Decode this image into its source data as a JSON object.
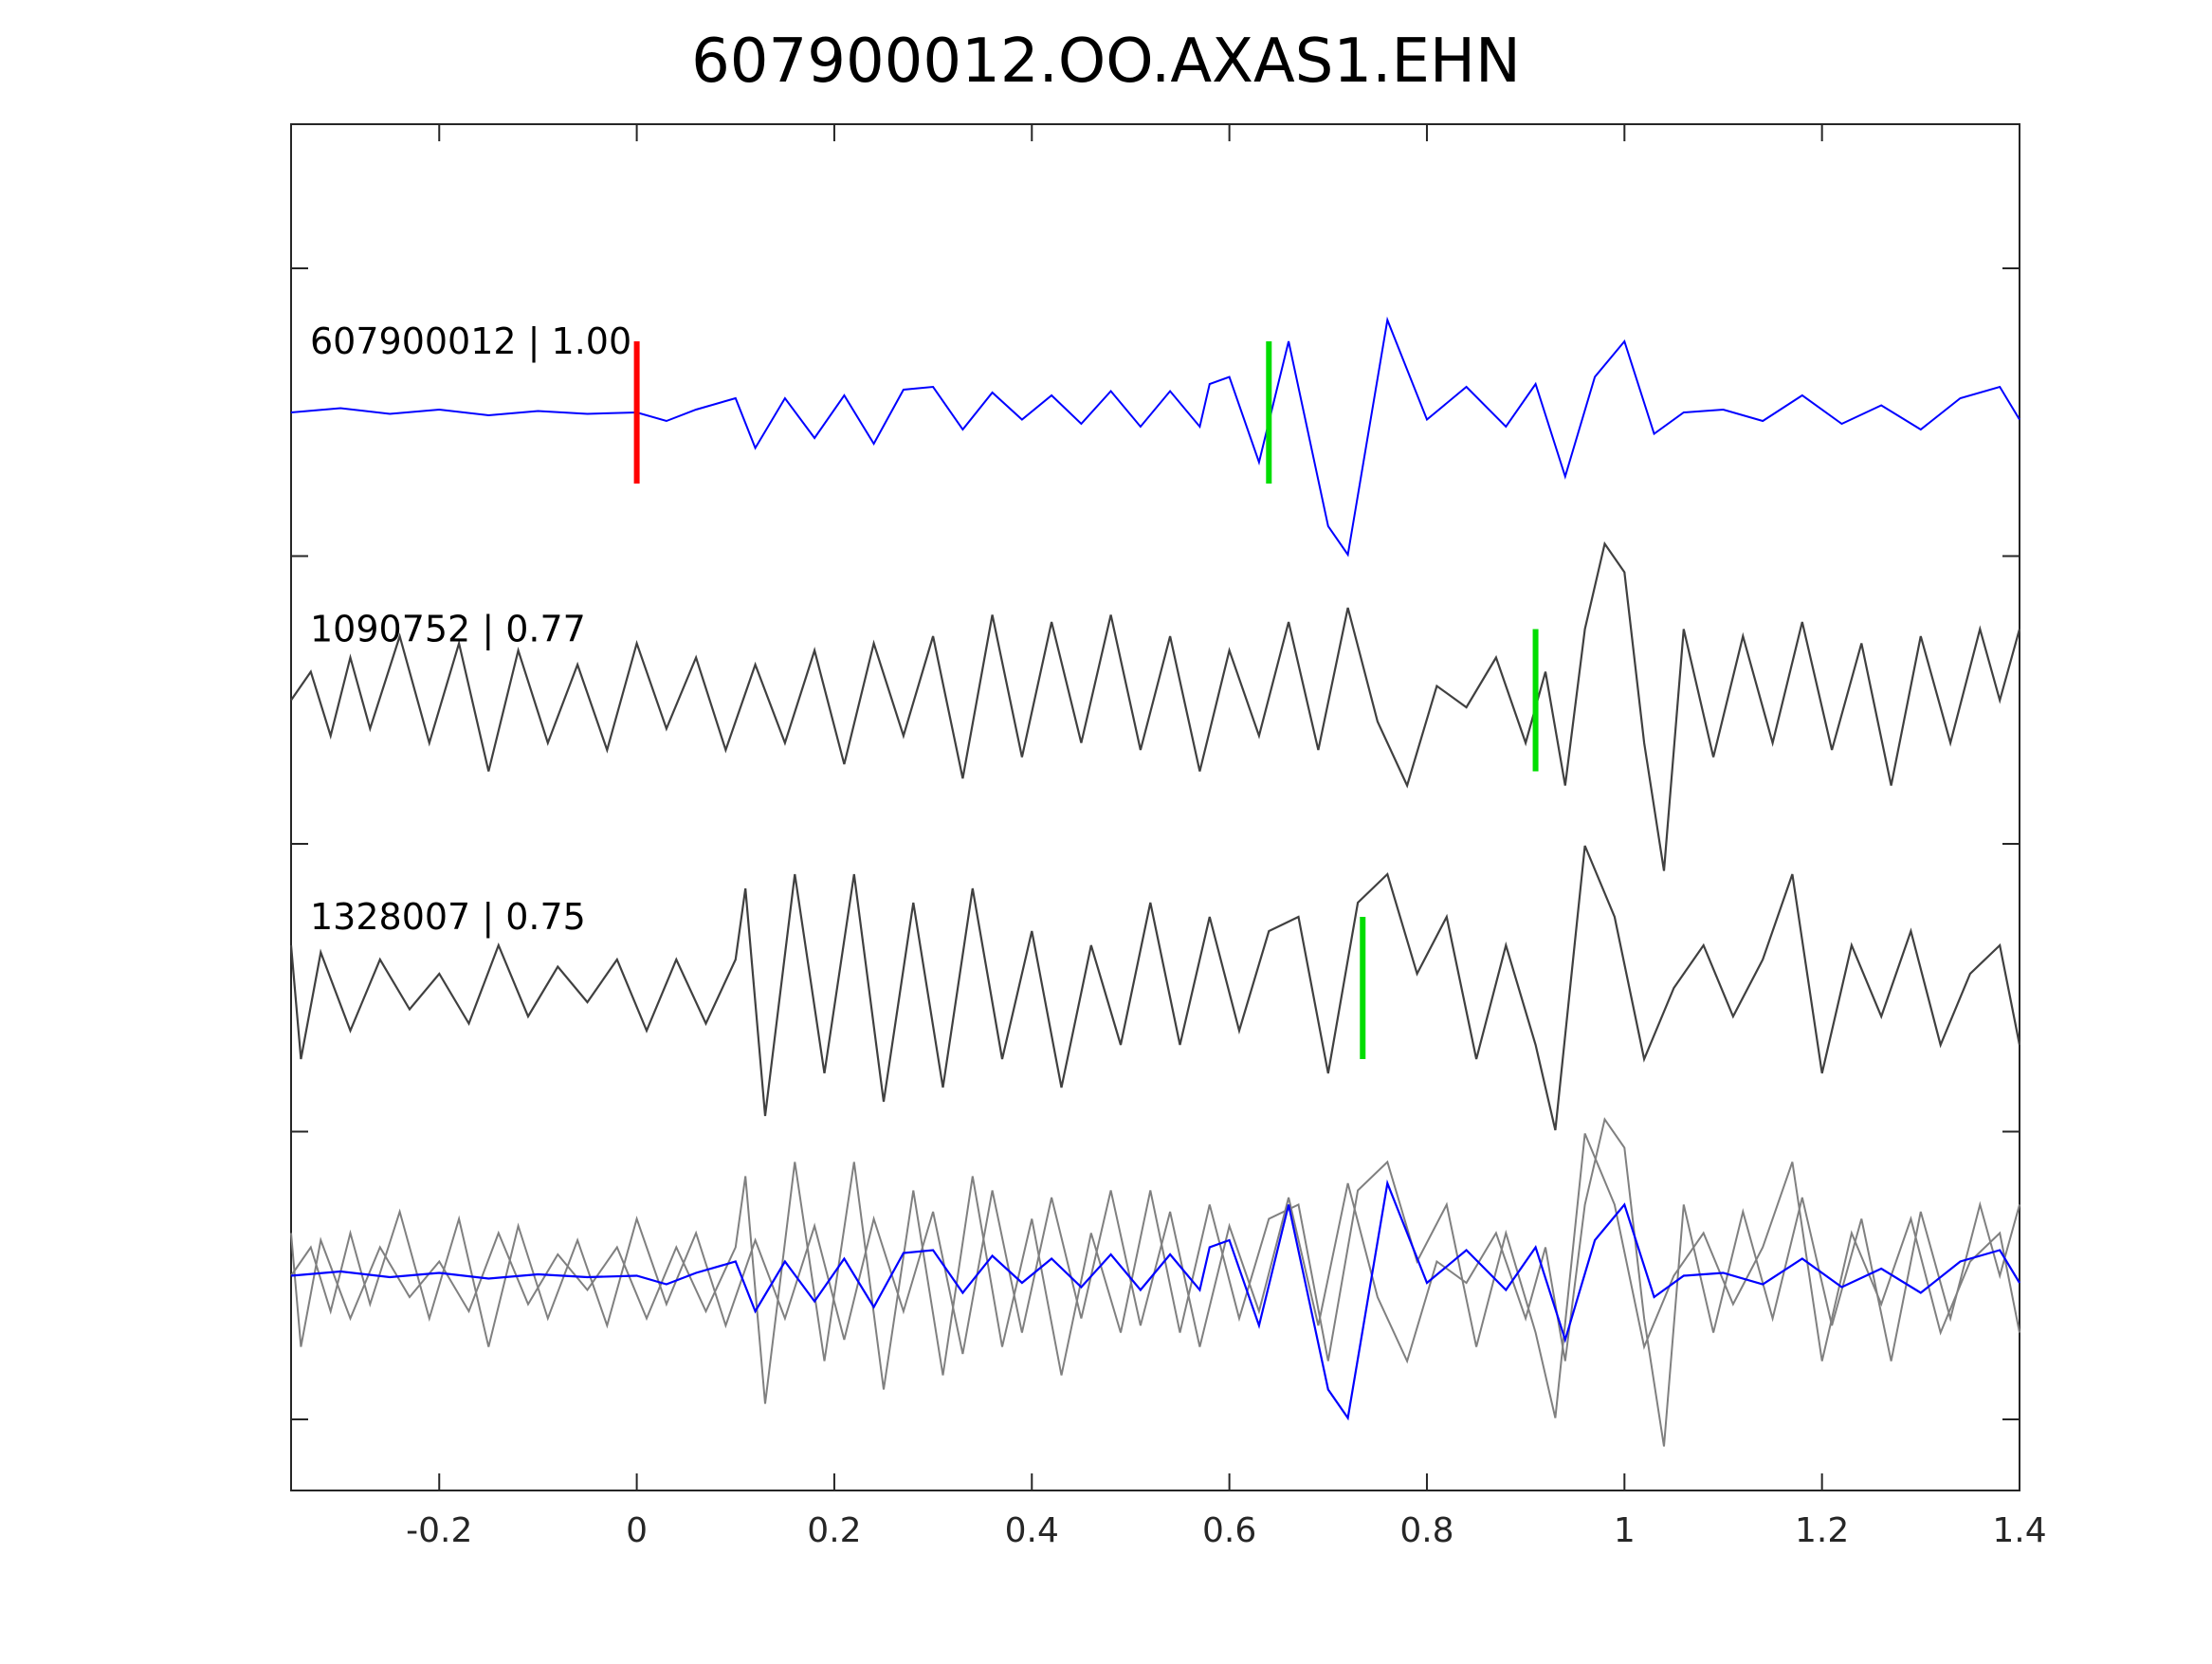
{
  "chart_data": {
    "type": "line",
    "title": "607900012.OO.AXAS1.EHN",
    "xlabel": "",
    "ylabel": "",
    "xlim": [
      -0.35,
      1.4
    ],
    "x_ticks": [
      -0.2,
      0,
      0.2,
      0.4,
      0.6,
      0.8,
      1,
      1.2,
      1.4
    ],
    "x_tick_labels": [
      "-0.2",
      "0",
      "0.2",
      "0.4",
      "0.6",
      "0.8",
      "1",
      "1.2",
      "1.4"
    ],
    "grid": false,
    "legend": "none",
    "colors": {
      "template": "#0000ff",
      "candidate": "#404040",
      "overlay": "#808080",
      "origin_pick": "#ff0000",
      "pick": "#00dd00",
      "axis": "#262626"
    },
    "traces": [
      {
        "label": "607900012 | 1.00",
        "id": "607900012",
        "correlation": "1.00",
        "style": "template",
        "picks": [
          {
            "t": 0.0,
            "kind": "origin"
          },
          {
            "t": 0.64,
            "kind": "arrival"
          }
        ],
        "points": [
          [
            -0.35,
            0.0
          ],
          [
            -0.3,
            0.03
          ],
          [
            -0.25,
            -0.01
          ],
          [
            -0.2,
            0.02
          ],
          [
            -0.15,
            -0.02
          ],
          [
            -0.1,
            0.01
          ],
          [
            -0.05,
            -0.01
          ],
          [
            0.0,
            0.0
          ],
          [
            0.03,
            -0.06
          ],
          [
            0.06,
            0.02
          ],
          [
            0.1,
            0.1
          ],
          [
            0.12,
            -0.25
          ],
          [
            0.15,
            0.1
          ],
          [
            0.18,
            -0.18
          ],
          [
            0.21,
            0.12
          ],
          [
            0.24,
            -0.22
          ],
          [
            0.27,
            0.16
          ],
          [
            0.3,
            0.18
          ],
          [
            0.33,
            -0.12
          ],
          [
            0.36,
            0.14
          ],
          [
            0.39,
            -0.05
          ],
          [
            0.42,
            0.12
          ],
          [
            0.45,
            -0.08
          ],
          [
            0.48,
            0.15
          ],
          [
            0.51,
            -0.1
          ],
          [
            0.54,
            0.15
          ],
          [
            0.57,
            -0.1
          ],
          [
            0.58,
            0.2
          ],
          [
            0.6,
            0.25
          ],
          [
            0.63,
            -0.35
          ],
          [
            0.66,
            0.5
          ],
          [
            0.7,
            -0.8
          ],
          [
            0.72,
            -1.0
          ],
          [
            0.76,
            0.65
          ],
          [
            0.8,
            -0.05
          ],
          [
            0.84,
            0.18
          ],
          [
            0.88,
            -0.1
          ],
          [
            0.91,
            0.2
          ],
          [
            0.94,
            -0.45
          ],
          [
            0.97,
            0.25
          ],
          [
            1.0,
            0.5
          ],
          [
            1.03,
            -0.15
          ],
          [
            1.06,
            0.0
          ],
          [
            1.1,
            0.02
          ],
          [
            1.14,
            -0.06
          ],
          [
            1.18,
            0.12
          ],
          [
            1.22,
            -0.08
          ],
          [
            1.26,
            0.05
          ],
          [
            1.3,
            -0.12
          ],
          [
            1.34,
            0.1
          ],
          [
            1.38,
            0.18
          ],
          [
            1.4,
            -0.05
          ]
        ]
      },
      {
        "label": "1090752 | 0.77",
        "id": "1090752",
        "correlation": "0.77",
        "style": "candidate",
        "picks": [
          {
            "t": 0.91,
            "kind": "arrival"
          }
        ],
        "points": [
          [
            -0.35,
            0.0
          ],
          [
            -0.33,
            0.2
          ],
          [
            -0.31,
            -0.25
          ],
          [
            -0.29,
            0.3
          ],
          [
            -0.27,
            -0.2
          ],
          [
            -0.24,
            0.45
          ],
          [
            -0.21,
            -0.3
          ],
          [
            -0.18,
            0.4
          ],
          [
            -0.15,
            -0.5
          ],
          [
            -0.12,
            0.35
          ],
          [
            -0.09,
            -0.3
          ],
          [
            -0.06,
            0.25
          ],
          [
            -0.03,
            -0.35
          ],
          [
            0.0,
            0.4
          ],
          [
            0.03,
            -0.2
          ],
          [
            0.06,
            0.3
          ],
          [
            0.09,
            -0.35
          ],
          [
            0.12,
            0.25
          ],
          [
            0.15,
            -0.3
          ],
          [
            0.18,
            0.35
          ],
          [
            0.21,
            -0.45
          ],
          [
            0.24,
            0.4
          ],
          [
            0.27,
            -0.25
          ],
          [
            0.3,
            0.45
          ],
          [
            0.33,
            -0.55
          ],
          [
            0.36,
            0.6
          ],
          [
            0.39,
            -0.4
          ],
          [
            0.42,
            0.55
          ],
          [
            0.45,
            -0.3
          ],
          [
            0.48,
            0.6
          ],
          [
            0.51,
            -0.35
          ],
          [
            0.54,
            0.45
          ],
          [
            0.57,
            -0.5
          ],
          [
            0.6,
            0.35
          ],
          [
            0.63,
            -0.25
          ],
          [
            0.66,
            0.55
          ],
          [
            0.69,
            -0.35
          ],
          [
            0.72,
            0.65
          ],
          [
            0.75,
            -0.15
          ],
          [
            0.78,
            -0.6
          ],
          [
            0.81,
            0.1
          ],
          [
            0.84,
            -0.05
          ],
          [
            0.87,
            0.3
          ],
          [
            0.9,
            -0.3
          ],
          [
            0.92,
            0.2
          ],
          [
            0.94,
            -0.6
          ],
          [
            0.96,
            0.5
          ],
          [
            0.98,
            1.1
          ],
          [
            1.0,
            0.9
          ],
          [
            1.02,
            -0.3
          ],
          [
            1.04,
            -1.2
          ],
          [
            1.06,
            0.5
          ],
          [
            1.09,
            -0.4
          ],
          [
            1.12,
            0.45
          ],
          [
            1.15,
            -0.3
          ],
          [
            1.18,
            0.55
          ],
          [
            1.21,
            -0.35
          ],
          [
            1.24,
            0.4
          ],
          [
            1.27,
            -0.6
          ],
          [
            1.3,
            0.45
          ],
          [
            1.33,
            -0.3
          ],
          [
            1.36,
            0.5
          ],
          [
            1.38,
            0.0
          ],
          [
            1.4,
            0.5
          ]
        ]
      },
      {
        "label": "1328007 | 0.75",
        "id": "1328007",
        "correlation": "0.75",
        "style": "candidate",
        "picks": [
          {
            "t": 0.735,
            "kind": "arrival"
          }
        ],
        "points": [
          [
            -0.35,
            0.3
          ],
          [
            -0.34,
            -0.5
          ],
          [
            -0.32,
            0.25
          ],
          [
            -0.29,
            -0.3
          ],
          [
            -0.26,
            0.2
          ],
          [
            -0.23,
            -0.15
          ],
          [
            -0.2,
            0.1
          ],
          [
            -0.17,
            -0.25
          ],
          [
            -0.14,
            0.3
          ],
          [
            -0.11,
            -0.2
          ],
          [
            -0.08,
            0.15
          ],
          [
            -0.05,
            -0.1
          ],
          [
            -0.02,
            0.2
          ],
          [
            0.01,
            -0.3
          ],
          [
            0.04,
            0.2
          ],
          [
            0.07,
            -0.25
          ],
          [
            0.1,
            0.2
          ],
          [
            0.11,
            0.7
          ],
          [
            0.13,
            -0.9
          ],
          [
            0.16,
            0.8
          ],
          [
            0.19,
            -0.6
          ],
          [
            0.22,
            0.8
          ],
          [
            0.25,
            -0.8
          ],
          [
            0.28,
            0.6
          ],
          [
            0.31,
            -0.7
          ],
          [
            0.34,
            0.7
          ],
          [
            0.37,
            -0.5
          ],
          [
            0.4,
            0.4
          ],
          [
            0.43,
            -0.7
          ],
          [
            0.46,
            0.3
          ],
          [
            0.49,
            -0.4
          ],
          [
            0.52,
            0.6
          ],
          [
            0.55,
            -0.4
          ],
          [
            0.58,
            0.5
          ],
          [
            0.61,
            -0.3
          ],
          [
            0.64,
            0.4
          ],
          [
            0.67,
            0.5
          ],
          [
            0.7,
            -0.6
          ],
          [
            0.73,
            0.6
          ],
          [
            0.76,
            0.8
          ],
          [
            0.79,
            0.1
          ],
          [
            0.82,
            0.5
          ],
          [
            0.85,
            -0.5
          ],
          [
            0.88,
            0.3
          ],
          [
            0.91,
            -0.4
          ],
          [
            0.93,
            -1.0
          ],
          [
            0.96,
            1.0
          ],
          [
            0.99,
            0.5
          ],
          [
            1.02,
            -0.5
          ],
          [
            1.05,
            0.0
          ],
          [
            1.08,
            0.3
          ],
          [
            1.11,
            -0.2
          ],
          [
            1.14,
            0.2
          ],
          [
            1.17,
            0.8
          ],
          [
            1.2,
            -0.6
          ],
          [
            1.23,
            0.3
          ],
          [
            1.26,
            -0.2
          ],
          [
            1.29,
            0.4
          ],
          [
            1.32,
            -0.4
          ],
          [
            1.35,
            0.1
          ],
          [
            1.38,
            0.3
          ],
          [
            1.4,
            -0.4
          ]
        ]
      }
    ]
  }
}
